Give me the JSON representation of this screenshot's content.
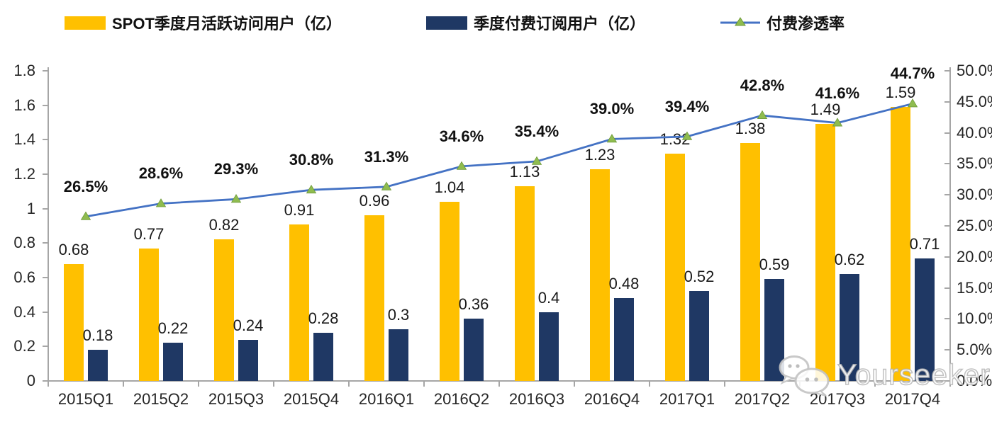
{
  "legend": [
    {
      "label": "SPOT季度月活跃访问用户（亿）",
      "color": "#FFC000",
      "type": "bar"
    },
    {
      "label": "季度付费订阅用户（亿）",
      "color": "#1F3864",
      "type": "bar"
    },
    {
      "label": "付费渗透率",
      "color": "#4472C4",
      "marker_color": "#8FBC4F",
      "type": "line"
    }
  ],
  "chart_data": {
    "type": "bar+line",
    "categories": [
      "2015Q1",
      "2015Q2",
      "2015Q3",
      "2015Q4",
      "2016Q1",
      "2016Q2",
      "2016Q3",
      "2016Q4",
      "2017Q1",
      "2017Q2",
      "2017Q3",
      "2017Q4"
    ],
    "series": [
      {
        "name": "SPOT季度月活跃访问用户（亿）",
        "type": "bar",
        "axis": "left",
        "color": "#FFC000",
        "values": [
          0.68,
          0.77,
          0.82,
          0.91,
          0.96,
          1.04,
          1.13,
          1.23,
          1.32,
          1.38,
          1.49,
          1.59
        ],
        "labels": [
          "0.68",
          "0.77",
          "0.82",
          "0.91",
          "0.96",
          "1.04",
          "1.13",
          "1.23",
          "1.32",
          "1.38",
          "1.49",
          "1.59"
        ]
      },
      {
        "name": "季度付费订阅用户（亿）",
        "type": "bar",
        "axis": "left",
        "color": "#1F3864",
        "values": [
          0.18,
          0.22,
          0.24,
          0.28,
          0.3,
          0.36,
          0.4,
          0.48,
          0.52,
          0.59,
          0.62,
          0.71
        ],
        "labels": [
          "0.18",
          "0.22",
          "0.24",
          "0.28",
          "0.3",
          "0.36",
          "0.4",
          "0.48",
          "0.52",
          "0.59",
          "0.62",
          "0.71"
        ]
      },
      {
        "name": "付费渗透率",
        "type": "line",
        "axis": "right",
        "color": "#4472C4",
        "marker": "triangle",
        "marker_color": "#8FBC4F",
        "values": [
          26.5,
          28.6,
          29.3,
          30.8,
          31.3,
          34.6,
          35.4,
          39.0,
          39.4,
          42.8,
          41.6,
          44.7
        ],
        "labels": [
          "26.5%",
          "28.6%",
          "29.3%",
          "30.8%",
          "31.3%",
          "34.6%",
          "35.4%",
          "39.0%",
          "39.4%",
          "42.8%",
          "41.6%",
          "44.7%"
        ]
      }
    ],
    "left_axis": {
      "min": 0,
      "max": 1.8,
      "ticks": [
        "0",
        "0.2",
        "0.4",
        "0.6",
        "0.8",
        "1",
        "1.2",
        "1.4",
        "1.6",
        "1.8"
      ]
    },
    "right_axis": {
      "min": 0,
      "max": 50,
      "ticks": [
        "0.0%",
        "5.0%",
        "10.0%",
        "15.0%",
        "20.0%",
        "25.0%",
        "30.0%",
        "35.0%",
        "40.0%",
        "45.0%",
        "50.0%"
      ]
    },
    "grid": false,
    "legend_position": "top"
  },
  "watermark": {
    "text": "Yourseeker",
    "icon": "wechat-icon"
  }
}
